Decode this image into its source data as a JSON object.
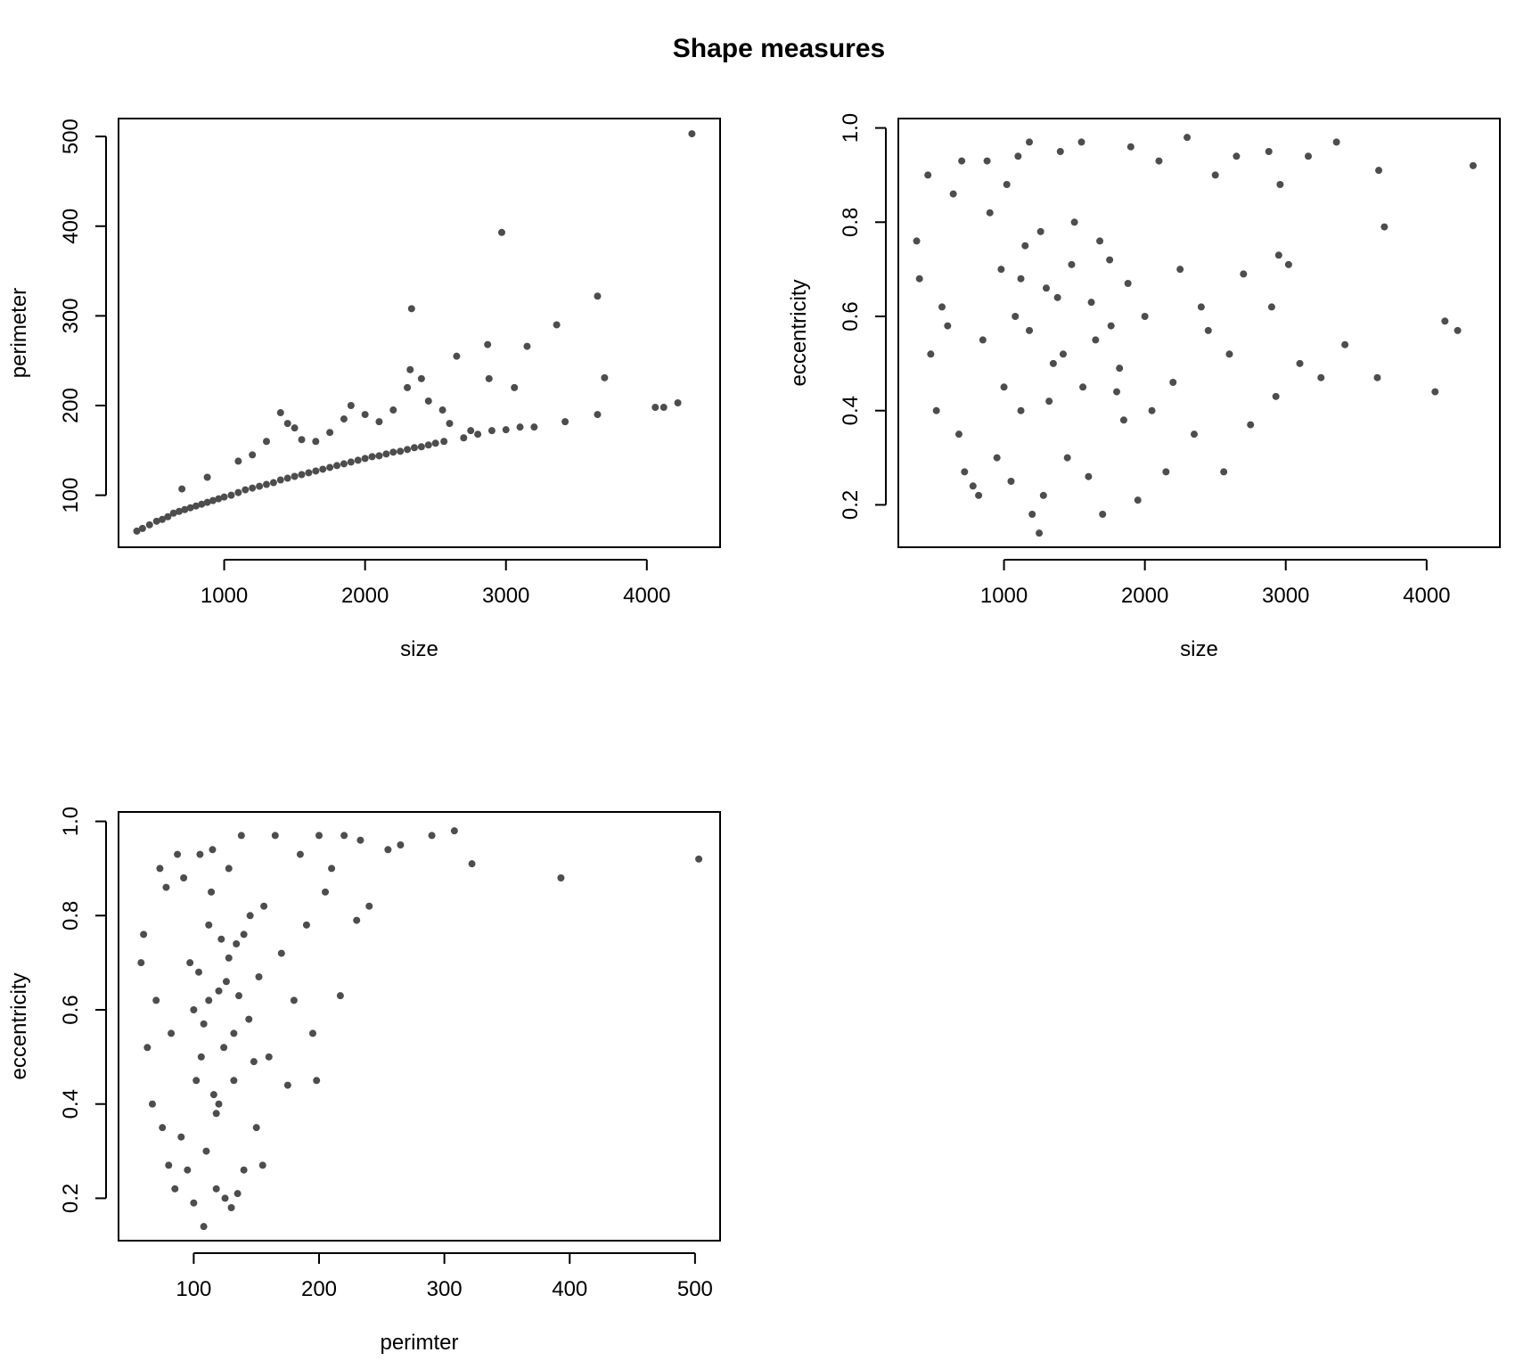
{
  "figure": {
    "title": "Shape measures"
  },
  "chart_data": [
    {
      "type": "scatter",
      "panel": "top-left",
      "xlabel": "size",
      "ylabel": "perimeter",
      "xlim": [
        250,
        4520
      ],
      "ylim": [
        42,
        520
      ],
      "x_ticks": [
        1000,
        2000,
        3000,
        4000
      ],
      "y_ticks": [
        100,
        200,
        300,
        400,
        500
      ],
      "grid": false,
      "marker_color": "#4d4d4d",
      "points": [
        [
          380,
          60
        ],
        [
          420,
          63
        ],
        [
          470,
          67
        ],
        [
          520,
          71
        ],
        [
          560,
          73
        ],
        [
          600,
          76
        ],
        [
          640,
          80
        ],
        [
          680,
          82
        ],
        [
          720,
          84
        ],
        [
          760,
          86
        ],
        [
          800,
          88
        ],
        [
          840,
          90
        ],
        [
          880,
          92
        ],
        [
          920,
          94
        ],
        [
          960,
          96
        ],
        [
          1000,
          98
        ],
        [
          1050,
          100
        ],
        [
          1100,
          103
        ],
        [
          1150,
          106
        ],
        [
          1200,
          108
        ],
        [
          1250,
          110
        ],
        [
          1300,
          112
        ],
        [
          1350,
          114
        ],
        [
          1400,
          117
        ],
        [
          1450,
          119
        ],
        [
          1500,
          121
        ],
        [
          1550,
          123
        ],
        [
          1600,
          125
        ],
        [
          1650,
          127
        ],
        [
          1700,
          129
        ],
        [
          1750,
          131
        ],
        [
          1800,
          133
        ],
        [
          1850,
          135
        ],
        [
          1900,
          137
        ],
        [
          1950,
          139
        ],
        [
          2000,
          141
        ],
        [
          2050,
          143
        ],
        [
          2100,
          144
        ],
        [
          2150,
          146
        ],
        [
          2200,
          148
        ],
        [
          2250,
          149
        ],
        [
          2300,
          151
        ],
        [
          2350,
          153
        ],
        [
          2400,
          154
        ],
        [
          2450,
          156
        ],
        [
          2500,
          158
        ],
        [
          2560,
          160
        ],
        [
          2700,
          164
        ],
        [
          2800,
          168
        ],
        [
          2900,
          172
        ],
        [
          3000,
          173
        ],
        [
          3100,
          176
        ],
        [
          3200,
          176
        ],
        [
          3420,
          182
        ],
        [
          700,
          107
        ],
        [
          880,
          120
        ],
        [
          1100,
          138
        ],
        [
          1200,
          145
        ],
        [
          1300,
          160
        ],
        [
          1400,
          192
        ],
        [
          1450,
          180
        ],
        [
          1500,
          175
        ],
        [
          1550,
          162
        ],
        [
          1650,
          160
        ],
        [
          1750,
          170
        ],
        [
          1850,
          185
        ],
        [
          1900,
          200
        ],
        [
          2000,
          190
        ],
        [
          2100,
          182
        ],
        [
          2200,
          195
        ],
        [
          2300,
          220
        ],
        [
          2320,
          240
        ],
        [
          2400,
          230
        ],
        [
          2450,
          205
        ],
        [
          2550,
          195
        ],
        [
          2650,
          255
        ],
        [
          2870,
          268
        ],
        [
          2880,
          230
        ],
        [
          3060,
          220
        ],
        [
          3150,
          266
        ],
        [
          3360,
          290
        ],
        [
          3650,
          322
        ],
        [
          3700,
          231
        ],
        [
          3650,
          190
        ],
        [
          4060,
          198
        ],
        [
          4120,
          198
        ],
        [
          4220,
          203
        ],
        [
          2330,
          308
        ],
        [
          2970,
          393
        ],
        [
          4320,
          503
        ],
        [
          2600,
          180
        ],
        [
          2750,
          172
        ]
      ]
    },
    {
      "type": "scatter",
      "panel": "top-right",
      "xlabel": "size",
      "ylabel": "eccentricity",
      "xlim": [
        250,
        4520
      ],
      "ylim": [
        0.11,
        1.02
      ],
      "x_ticks": [
        1000,
        2000,
        3000,
        4000
      ],
      "y_ticks": [
        0.2,
        0.4,
        0.6,
        0.8,
        1.0
      ],
      "grid": false,
      "marker_color": "#4d4d4d",
      "points": [
        [
          380,
          0.76
        ],
        [
          400,
          0.68
        ],
        [
          460,
          0.9
        ],
        [
          480,
          0.52
        ],
        [
          520,
          0.4
        ],
        [
          560,
          0.62
        ],
        [
          600,
          0.58
        ],
        [
          640,
          0.86
        ],
        [
          680,
          0.35
        ],
        [
          700,
          0.93
        ],
        [
          720,
          0.27
        ],
        [
          780,
          0.24
        ],
        [
          820,
          0.22
        ],
        [
          850,
          0.55
        ],
        [
          880,
          0.93
        ],
        [
          900,
          0.82
        ],
        [
          950,
          0.3
        ],
        [
          980,
          0.7
        ],
        [
          1000,
          0.45
        ],
        [
          1020,
          0.88
        ],
        [
          1050,
          0.25
        ],
        [
          1080,
          0.6
        ],
        [
          1100,
          0.94
        ],
        [
          1120,
          0.4
        ],
        [
          1150,
          0.75
        ],
        [
          1180,
          0.97
        ],
        [
          1200,
          0.18
        ],
        [
          1250,
          0.14
        ],
        [
          1280,
          0.22
        ],
        [
          1300,
          0.66
        ],
        [
          1350,
          0.5
        ],
        [
          1400,
          0.95
        ],
        [
          1450,
          0.3
        ],
        [
          1500,
          0.8
        ],
        [
          1550,
          0.97
        ],
        [
          1600,
          0.26
        ],
        [
          1650,
          0.55
        ],
        [
          1700,
          0.18
        ],
        [
          1750,
          0.72
        ],
        [
          1800,
          0.44
        ],
        [
          1850,
          0.38
        ],
        [
          1900,
          0.96
        ],
        [
          1950,
          0.21
        ],
        [
          2000,
          0.6
        ],
        [
          2050,
          0.4
        ],
        [
          2100,
          0.93
        ],
        [
          2150,
          0.27
        ],
        [
          2200,
          0.46
        ],
        [
          2250,
          0.7
        ],
        [
          2300,
          0.98
        ],
        [
          2350,
          0.35
        ],
        [
          2400,
          0.62
        ],
        [
          2450,
          0.57
        ],
        [
          2500,
          0.9
        ],
        [
          2560,
          0.27
        ],
        [
          2600,
          0.52
        ],
        [
          2650,
          0.94
        ],
        [
          2700,
          0.69
        ],
        [
          2750,
          0.37
        ],
        [
          2880,
          0.95
        ],
        [
          2930,
          0.43
        ],
        [
          2960,
          0.88
        ],
        [
          3020,
          0.71
        ],
        [
          3100,
          0.5
        ],
        [
          3160,
          0.94
        ],
        [
          3250,
          0.47
        ],
        [
          3360,
          0.97
        ],
        [
          3420,
          0.54
        ],
        [
          3650,
          0.47
        ],
        [
          3660,
          0.91
        ],
        [
          3700,
          0.79
        ],
        [
          4060,
          0.44
        ],
        [
          4130,
          0.59
        ],
        [
          4220,
          0.57
        ],
        [
          4330,
          0.92
        ],
        [
          1120,
          0.68
        ],
        [
          1180,
          0.57
        ],
        [
          1260,
          0.78
        ],
        [
          1320,
          0.42
        ],
        [
          1380,
          0.64
        ],
        [
          1420,
          0.52
        ],
        [
          1480,
          0.71
        ],
        [
          1560,
          0.45
        ],
        [
          1620,
          0.63
        ],
        [
          1680,
          0.76
        ],
        [
          1760,
          0.58
        ],
        [
          1820,
          0.49
        ],
        [
          1880,
          0.67
        ],
        [
          2900,
          0.62
        ],
        [
          2950,
          0.73
        ]
      ]
    },
    {
      "type": "scatter",
      "panel": "bottom-left",
      "xlabel": "perimter",
      "ylabel": "eccentricity",
      "xlim": [
        40,
        520
      ],
      "ylim": [
        0.11,
        1.02
      ],
      "x_ticks": [
        100,
        200,
        300,
        400,
        500
      ],
      "y_ticks": [
        0.2,
        0.4,
        0.6,
        0.8,
        1.0
      ],
      "grid": false,
      "marker_color": "#4d4d4d",
      "points": [
        [
          58,
          0.7
        ],
        [
          60,
          0.76
        ],
        [
          63,
          0.52
        ],
        [
          67,
          0.4
        ],
        [
          70,
          0.62
        ],
        [
          73,
          0.9
        ],
        [
          75,
          0.35
        ],
        [
          78,
          0.86
        ],
        [
          80,
          0.27
        ],
        [
          82,
          0.55
        ],
        [
          85,
          0.22
        ],
        [
          87,
          0.93
        ],
        [
          90,
          0.33
        ],
        [
          92,
          0.88
        ],
        [
          95,
          0.26
        ],
        [
          97,
          0.7
        ],
        [
          100,
          0.19
        ],
        [
          102,
          0.45
        ],
        [
          105,
          0.93
        ],
        [
          108,
          0.14
        ],
        [
          110,
          0.3
        ],
        [
          112,
          0.62
        ],
        [
          115,
          0.94
        ],
        [
          118,
          0.22
        ],
        [
          120,
          0.4
        ],
        [
          122,
          0.75
        ],
        [
          125,
          0.2
        ],
        [
          128,
          0.9
        ],
        [
          130,
          0.18
        ],
        [
          132,
          0.55
        ],
        [
          135,
          0.21
        ],
        [
          138,
          0.97
        ],
        [
          140,
          0.26
        ],
        [
          145,
          0.8
        ],
        [
          150,
          0.35
        ],
        [
          155,
          0.27
        ],
        [
          160,
          0.5
        ],
        [
          165,
          0.97
        ],
        [
          170,
          0.72
        ],
        [
          175,
          0.44
        ],
        [
          180,
          0.62
        ],
        [
          185,
          0.93
        ],
        [
          190,
          0.78
        ],
        [
          195,
          0.55
        ],
        [
          198,
          0.45
        ],
        [
          200,
          0.97
        ],
        [
          205,
          0.85
        ],
        [
          210,
          0.9
        ],
        [
          217,
          0.63
        ],
        [
          220,
          0.97
        ],
        [
          230,
          0.79
        ],
        [
          233,
          0.96
        ],
        [
          240,
          0.82
        ],
        [
          255,
          0.94
        ],
        [
          265,
          0.95
        ],
        [
          290,
          0.97
        ],
        [
          308,
          0.98
        ],
        [
          322,
          0.91
        ],
        [
          393,
          0.88
        ],
        [
          503,
          0.92
        ],
        [
          104,
          0.68
        ],
        [
          108,
          0.57
        ],
        [
          112,
          0.78
        ],
        [
          116,
          0.42
        ],
        [
          120,
          0.64
        ],
        [
          124,
          0.52
        ],
        [
          128,
          0.71
        ],
        [
          132,
          0.45
        ],
        [
          136,
          0.63
        ],
        [
          140,
          0.76
        ],
        [
          144,
          0.58
        ],
        [
          148,
          0.49
        ],
        [
          152,
          0.67
        ],
        [
          156,
          0.82
        ],
        [
          100,
          0.6
        ],
        [
          106,
          0.5
        ],
        [
          114,
          0.85
        ],
        [
          118,
          0.38
        ],
        [
          126,
          0.66
        ],
        [
          134,
          0.74
        ]
      ]
    }
  ]
}
